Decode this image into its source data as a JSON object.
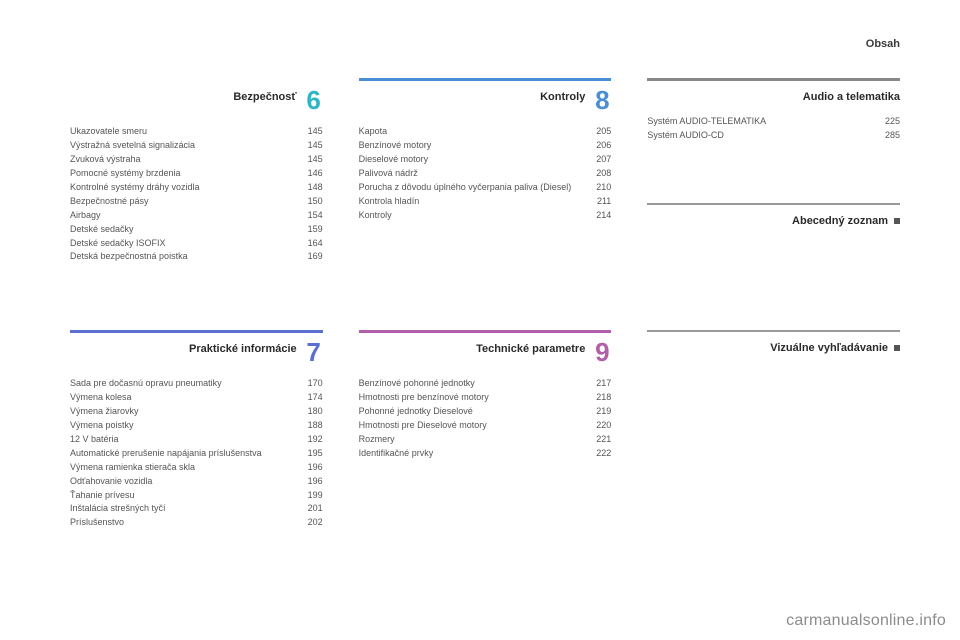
{
  "header": {
    "right": "Obsah"
  },
  "colors": {
    "sec6_rule": "#2fb6c4",
    "sec6_num": "#2fb6c4",
    "sec7_rule": "#5a6fd0",
    "sec7_num": "#5a6fd0",
    "sec8_rule": "#4a8fd6",
    "sec8_num": "#4a8fd6",
    "sec9_rule": "#b05fa8",
    "sec9_num": "#b05fa8",
    "audio_rule": "#888888",
    "thin_rule": "#9a9a9a"
  },
  "sec6": {
    "title": "Bezpečnosť",
    "num": "6",
    "items": [
      {
        "label": "Ukazovatele smeru",
        "pg": "145"
      },
      {
        "label": "Výstražná svetelná signalizácia",
        "pg": "145"
      },
      {
        "label": "Zvuková výstraha",
        "pg": "145"
      },
      {
        "label": "Pomocné systémy brzdenia",
        "pg": "146"
      },
      {
        "label": "Kontrolné systémy dráhy vozidla",
        "pg": "148"
      },
      {
        "label": "Bezpečnostné pásy",
        "pg": "150"
      },
      {
        "label": "Airbagy",
        "pg": "154"
      },
      {
        "label": "Detské sedačky",
        "pg": "159"
      },
      {
        "label": "Detské sedačky ISOFIX",
        "pg": "164"
      },
      {
        "label": "Detská bezpečnostná poistka",
        "pg": "169"
      }
    ]
  },
  "sec8": {
    "title": "Kontroly",
    "num": "8",
    "items": [
      {
        "label": "Kapota",
        "pg": "205"
      },
      {
        "label": "Benzínové motory",
        "pg": "206"
      },
      {
        "label": "Dieselové motory",
        "pg": "207"
      },
      {
        "label": "Palivová nádrž",
        "pg": "208"
      },
      {
        "label": "Porucha z dôvodu úplného vyčerpania paliva (Diesel)",
        "pg": "210"
      },
      {
        "label": "Kontrola hladín",
        "pg": "211"
      },
      {
        "label": "Kontroly",
        "pg": "214"
      }
    ]
  },
  "audio": {
    "title": "Audio a telematika",
    "items": [
      {
        "label": "Systém AUDIO-TELEMATIKA",
        "pg": "225"
      },
      {
        "label": "Systém AUDIO-CD",
        "pg": "285"
      }
    ]
  },
  "abc": {
    "title": "Abecedný zoznam"
  },
  "sec7": {
    "title": "Praktické informácie",
    "num": "7",
    "items": [
      {
        "label": "Sada pre dočasnú opravu pneumatiky",
        "pg": "170"
      },
      {
        "label": "Výmena kolesa",
        "pg": "174"
      },
      {
        "label": "Výmena žiarovky",
        "pg": "180"
      },
      {
        "label": "Výmena poistky",
        "pg": "188"
      },
      {
        "label": "12 V batéria",
        "pg": "192"
      },
      {
        "label": "Automatické prerušenie napájania príslušenstva",
        "pg": "195"
      },
      {
        "label": "Výmena ramienka stierača skla",
        "pg": "196"
      },
      {
        "label": "Odťahovanie vozidla",
        "pg": "196"
      },
      {
        "label": "Ťahanie prívesu",
        "pg": "199"
      },
      {
        "label": "Inštalácia strešných tyčí",
        "pg": "201"
      },
      {
        "label": "Príslušenstvo",
        "pg": "202"
      }
    ]
  },
  "sec9": {
    "title": "Technické parametre",
    "num": "9",
    "items": [
      {
        "label": "Benzínové pohonné jednotky",
        "pg": "217"
      },
      {
        "label": "Hmotnosti pre benzínové motory",
        "pg": "218"
      },
      {
        "label": "Pohonné jednotky Dieselové",
        "pg": "219"
      },
      {
        "label": "Hmotnosti pre Dieselové motory",
        "pg": "220"
      },
      {
        "label": "Rozmery",
        "pg": "221"
      },
      {
        "label": "Identifikačné prvky",
        "pg": "222"
      }
    ]
  },
  "visual": {
    "title": "Vizuálne vyhľadávanie"
  },
  "watermark": "carmanualsonline.info"
}
